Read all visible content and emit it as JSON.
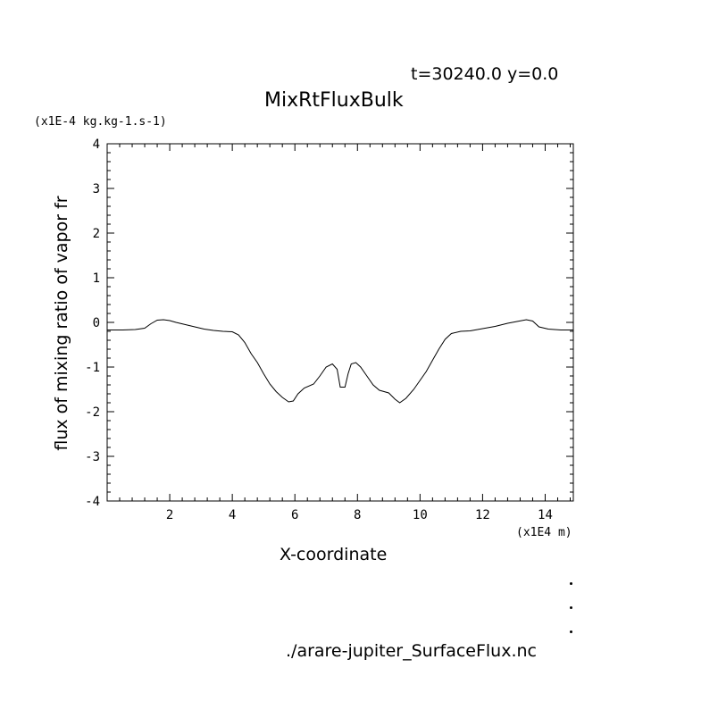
{
  "header": {
    "time_label": "t=30240.0 y=0.0",
    "title": "MixRtFluxBulk"
  },
  "footer": {
    "filename": "./arare-jupiter_SurfaceFlux.nc"
  },
  "chart_data": {
    "type": "line",
    "title": "MixRtFluxBulk",
    "xlabel": "X-coordinate",
    "ylabel": "flux of mixing ratio of vapor fr",
    "x_unit": "(x1E4 m)",
    "y_unit": "(x1E-4 kg.kg-1.s-1)",
    "xlim": [
      0,
      14.9
    ],
    "ylim": [
      -4,
      4
    ],
    "x_ticks": [
      2,
      4,
      6,
      8,
      10,
      12,
      14
    ],
    "x_tick_labels": [
      "2",
      "4",
      "6",
      "8",
      "10",
      "12",
      "14"
    ],
    "y_ticks": [
      -4,
      -3,
      -2,
      -1,
      0,
      1,
      2,
      3,
      4
    ],
    "y_tick_labels": [
      "-4",
      "-3",
      "-2",
      "-1",
      "0",
      "1",
      "2",
      "3",
      "4"
    ],
    "grid": false,
    "series": [
      {
        "x": [
          0.0,
          0.5,
          0.9,
          1.2,
          1.4,
          1.6,
          1.8,
          2.0,
          2.2,
          2.5,
          2.8,
          3.1,
          3.4,
          3.7,
          4.0,
          4.2,
          4.4,
          4.6,
          4.8,
          5.0,
          5.2,
          5.4,
          5.6,
          5.8,
          5.95,
          6.1,
          6.3,
          6.6,
          6.8,
          7.0,
          7.2,
          7.35,
          7.45,
          7.6,
          7.7,
          7.8,
          7.95,
          8.1,
          8.3,
          8.5,
          8.7,
          9.0,
          9.2,
          9.35,
          9.55,
          9.8,
          10.0,
          10.2,
          10.4,
          10.6,
          10.8,
          11.0,
          11.3,
          11.6,
          12.0,
          12.4,
          12.8,
          13.1,
          13.4,
          13.6,
          13.8,
          14.1,
          14.5,
          14.9
        ],
        "y": [
          -0.17,
          -0.17,
          -0.16,
          -0.13,
          -0.03,
          0.05,
          0.06,
          0.04,
          0.0,
          -0.05,
          -0.1,
          -0.15,
          -0.18,
          -0.2,
          -0.21,
          -0.28,
          -0.45,
          -0.7,
          -0.9,
          -1.15,
          -1.38,
          -1.55,
          -1.68,
          -1.78,
          -1.76,
          -1.6,
          -1.47,
          -1.38,
          -1.2,
          -1.0,
          -0.93,
          -1.05,
          -1.45,
          -1.45,
          -1.15,
          -0.93,
          -0.9,
          -1.0,
          -1.2,
          -1.4,
          -1.52,
          -1.58,
          -1.72,
          -1.8,
          -1.7,
          -1.5,
          -1.3,
          -1.1,
          -0.85,
          -0.6,
          -0.38,
          -0.25,
          -0.2,
          -0.19,
          -0.14,
          -0.09,
          -0.02,
          0.02,
          0.06,
          0.03,
          -0.1,
          -0.15,
          -0.17,
          -0.17
        ]
      }
    ]
  }
}
